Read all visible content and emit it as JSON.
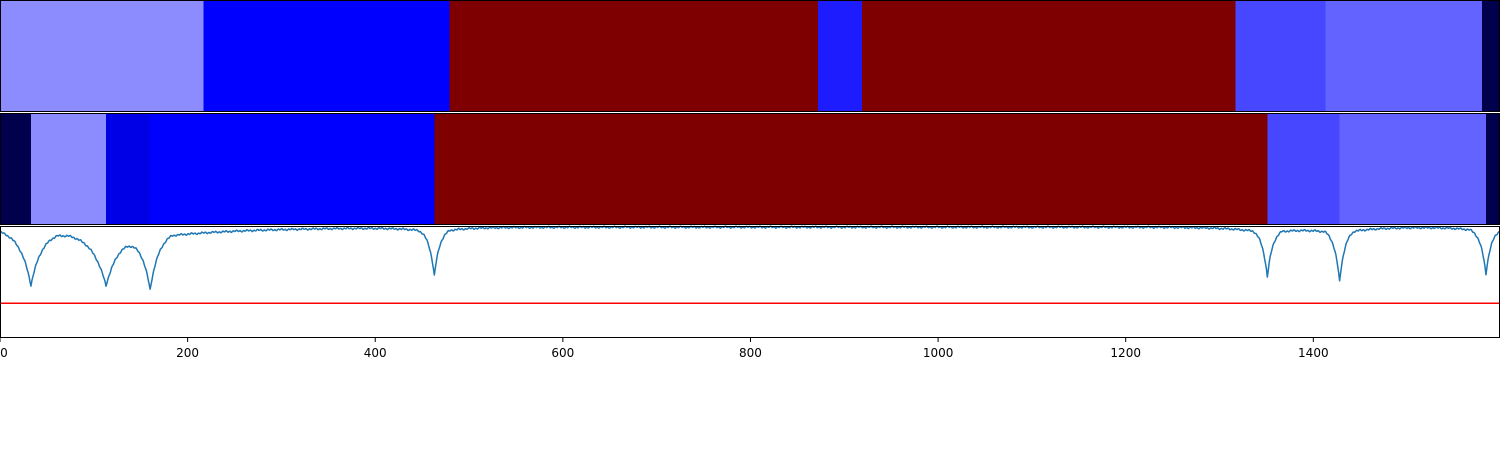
{
  "chart_data": [
    {
      "type": "heatmap",
      "panel": "top-track",
      "segments": [
        {
          "start": 0,
          "end": 217,
          "color": "#8c8cff"
        },
        {
          "start": 217,
          "end": 479,
          "color": "#0000ff"
        },
        {
          "start": 479,
          "end": 872,
          "color": "#7f0000"
        },
        {
          "start": 872,
          "end": 919,
          "color": "#1c1cff"
        },
        {
          "start": 919,
          "end": 1317,
          "color": "#7f0000"
        },
        {
          "start": 1317,
          "end": 1413,
          "color": "#4747ff"
        },
        {
          "start": 1413,
          "end": 1580,
          "color": "#6363ff"
        },
        {
          "start": 1580,
          "end": 1599,
          "color": "#00004c"
        }
      ]
    },
    {
      "type": "heatmap",
      "panel": "middle-track",
      "segments": [
        {
          "start": 0,
          "end": 33,
          "color": "#00004c"
        },
        {
          "start": 33,
          "end": 113,
          "color": "#8c8cff"
        },
        {
          "start": 113,
          "end": 160,
          "color": "#0000e6"
        },
        {
          "start": 160,
          "end": 463,
          "color": "#0000ff"
        },
        {
          "start": 463,
          "end": 1351,
          "color": "#7f0000"
        },
        {
          "start": 1351,
          "end": 1428,
          "color": "#4747ff"
        },
        {
          "start": 1428,
          "end": 1584,
          "color": "#6363ff"
        },
        {
          "start": 1584,
          "end": 1599,
          "color": "#00004c"
        }
      ]
    },
    {
      "type": "line",
      "panel": "signal-track",
      "xlim": [
        0,
        1599
      ],
      "ylim": [
        0,
        1
      ],
      "xticks": [
        0,
        200,
        400,
        600,
        800,
        1000,
        1200,
        1400
      ],
      "series": [
        {
          "color": "#1f77b4",
          "baseline": 0.99,
          "dips": [
            {
              "x": 33,
              "depth": 0.5,
              "width": 12,
              "left": 25,
              "right": 70
            },
            {
              "x": 113,
              "depth": 0.48,
              "width": 15,
              "left": 45,
              "right": 25
            },
            {
              "x": 160,
              "depth": 0.52,
              "width": 10,
              "left": 20,
              "right": 65
            },
            {
              "x": 463,
              "depth": 0.43,
              "width": 6,
              "left": 14,
              "right": 14
            },
            {
              "x": 1351,
              "depth": 0.44,
              "width": 6,
              "left": 20,
              "right": 20
            },
            {
              "x": 1428,
              "depth": 0.48,
              "width": 6,
              "left": 18,
              "right": 18
            },
            {
              "x": 1584,
              "depth": 0.42,
              "width": 6,
              "left": 14,
              "right": 14
            }
          ]
        },
        {
          "color": "#ff0000",
          "constant": 0.31
        }
      ]
    }
  ]
}
